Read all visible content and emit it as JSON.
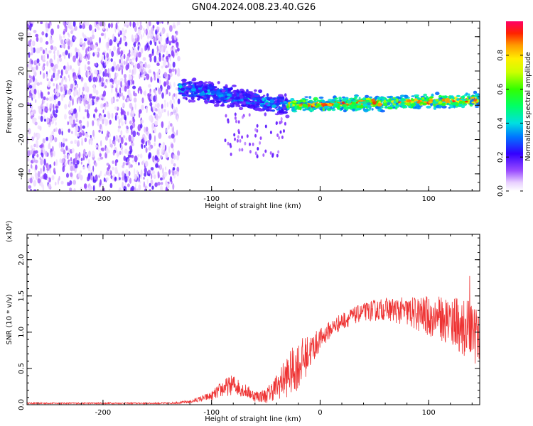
{
  "title": "GN04.2024.008.23.40.G26",
  "spectrogram": {
    "chart_data": {
      "type": "heatmap",
      "xlabel": "Height of straight line (km)",
      "ylabel": "Frequency (Hz)",
      "xlim": [
        -270,
        147
      ],
      "ylim": [
        -50,
        49
      ],
      "xticks": [
        -200,
        -100,
        0,
        100
      ],
      "yticks": [
        -40,
        -20,
        0,
        20,
        40
      ],
      "colorbar": {
        "label": "Normalized spectral amplitude",
        "range": [
          0,
          1
        ],
        "ticks": [
          "0.0",
          "0.2",
          "0.4",
          "0.6",
          "0.8"
        ]
      },
      "regions": [
        {
          "name": "noise",
          "x": [
            -270,
            -130
          ],
          "y": [
            -50,
            49
          ],
          "amplitude": [
            0.03,
            0.2
          ]
        },
        {
          "name": "track-onset",
          "x": [
            -130,
            -30
          ],
          "center_hz": [
            10,
            0
          ],
          "halfwidth_hz": 4,
          "amplitude": [
            0.15,
            0.45
          ]
        },
        {
          "name": "track",
          "x": [
            -30,
            147
          ],
          "center_hz": [
            0,
            3
          ],
          "halfwidth_hz": 2.5,
          "amplitude": [
            0.3,
            0.95
          ]
        }
      ]
    }
  },
  "snr": {
    "chart_data": {
      "type": "line",
      "xlabel": "Height of straight line (km)",
      "ylabel": "SNR (10 * v/v)",
      "multiplier": "(x10⁴)",
      "xlim": [
        -270,
        147
      ],
      "ylim": [
        0,
        2.35
      ],
      "xticks": [
        -200,
        -100,
        0,
        100
      ],
      "yticks": [
        "0.0",
        "0.5",
        "1.0",
        "1.5",
        "2.0"
      ],
      "color": "#ee3333",
      "envelope": {
        "x": [
          -270,
          -140,
          -120,
          -100,
          -90,
          -80,
          -70,
          -60,
          -50,
          -40,
          -30,
          -20,
          -10,
          0,
          10,
          20,
          30,
          40,
          50,
          60,
          70,
          80,
          90,
          100,
          110,
          120,
          130,
          140,
          147
        ],
        "mean": [
          0.02,
          0.02,
          0.04,
          0.12,
          0.22,
          0.28,
          0.2,
          0.12,
          0.12,
          0.25,
          0.4,
          0.55,
          0.72,
          0.9,
          1.05,
          1.15,
          1.22,
          1.28,
          1.3,
          1.32,
          1.3,
          1.28,
          1.25,
          1.22,
          1.2,
          1.15,
          1.1,
          1.0,
          0.9
        ],
        "amp": [
          0.01,
          0.01,
          0.02,
          0.06,
          0.12,
          0.14,
          0.1,
          0.08,
          0.1,
          0.18,
          0.3,
          0.35,
          0.25,
          0.15,
          0.12,
          0.12,
          0.12,
          0.12,
          0.15,
          0.15,
          0.18,
          0.2,
          0.25,
          0.28,
          0.3,
          0.35,
          0.4,
          0.4,
          0.38
        ]
      }
    }
  }
}
